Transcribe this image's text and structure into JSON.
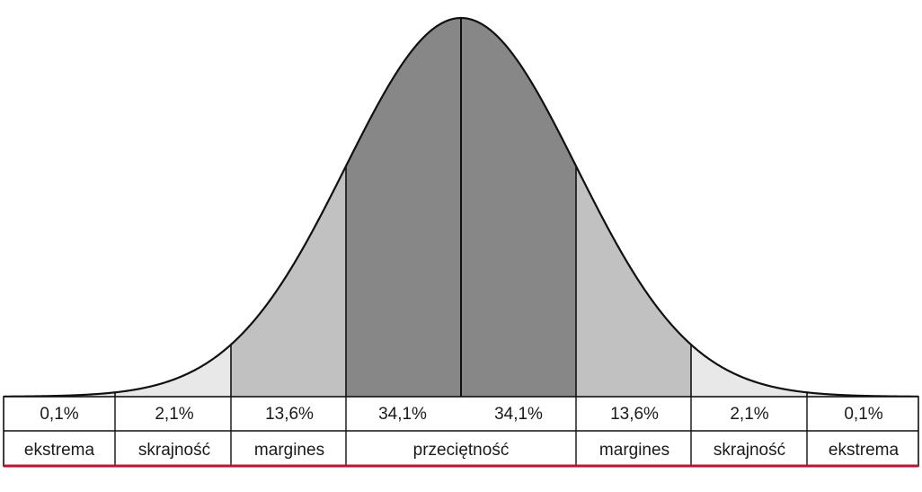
{
  "chart_data": {
    "type": "area",
    "percentages": [
      "0,1%",
      "2,1%",
      "13,6%",
      "34,1%",
      "34,1%",
      "13,6%",
      "2,1%",
      "0,1%"
    ],
    "categories": [
      "ekstrema",
      "skrajność",
      "margines",
      "przeciętność",
      "margines",
      "skrajność",
      "ekstrema"
    ],
    "region_shares": [
      0.1,
      2.1,
      13.6,
      34.1,
      34.1,
      13.6,
      2.1,
      0.1
    ],
    "colors": {
      "center": "#878787",
      "margin": "#c1c1c1",
      "extreme": "#e8e8e8",
      "accent_line": "#c8102e"
    }
  }
}
